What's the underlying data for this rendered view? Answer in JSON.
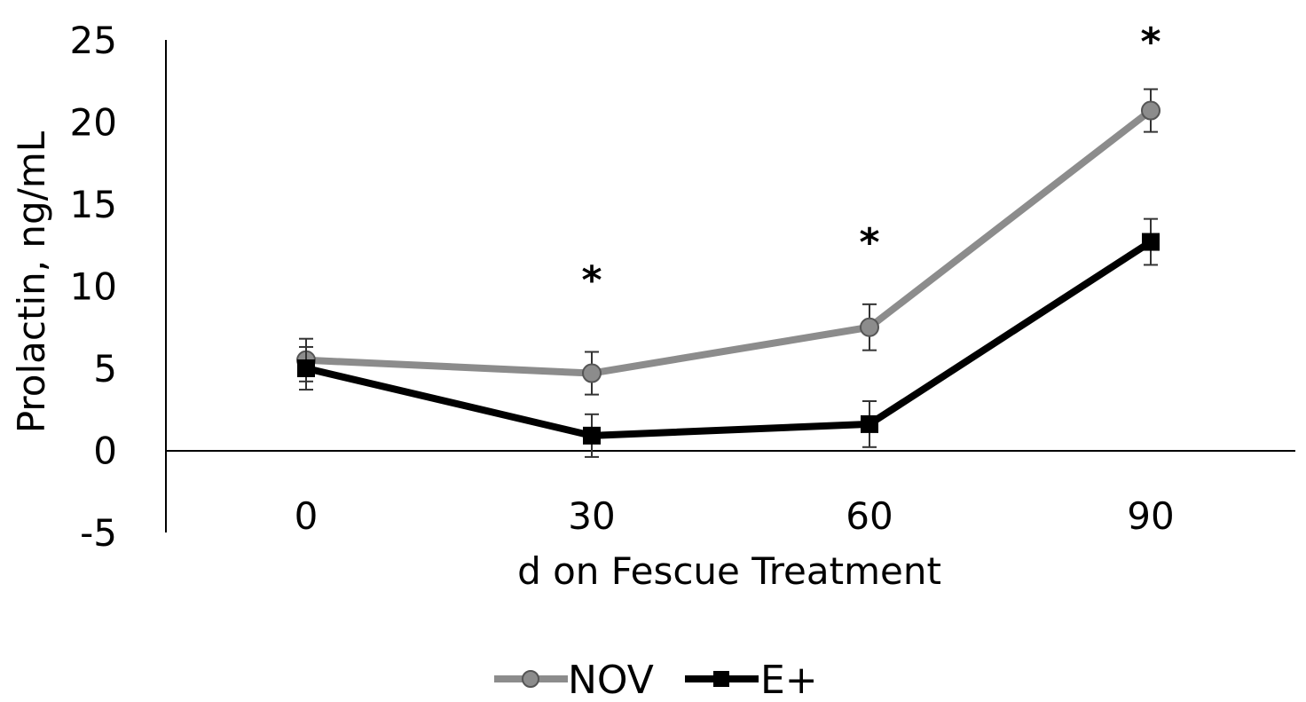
{
  "chart_data": {
    "type": "line",
    "title": "",
    "xlabel": "d on Fescue Treatment",
    "ylabel": "Prolactin, ng/mL",
    "categories": [
      "0",
      "30",
      "60",
      "90"
    ],
    "ylim": [
      -5,
      25
    ],
    "yticks": [
      25,
      20,
      15,
      10,
      5,
      0,
      -5
    ],
    "ytick_labels": [
      "25",
      "20",
      "15",
      "10",
      "5",
      "0",
      "-5"
    ],
    "grid": false,
    "legend_position": "bottom",
    "series": [
      {
        "name": "NOV",
        "values": [
          5.5,
          4.7,
          7.5,
          20.7
        ],
        "errors": [
          1.3,
          1.3,
          1.4,
          1.3
        ],
        "color": "#8c8c8c",
        "marker": "circle",
        "marker_fill": "#8c8c8c"
      },
      {
        "name": "E+",
        "values": [
          5.0,
          0.9,
          1.6,
          12.7
        ],
        "errors": [
          1.3,
          1.3,
          1.4,
          1.4
        ],
        "color": "#000000",
        "marker": "square",
        "marker_fill": "#000000"
      }
    ],
    "annotations": [
      {
        "category": "30",
        "text": "*",
        "y": 11.2
      },
      {
        "category": "60",
        "text": "*",
        "y": 13.5
      },
      {
        "category": "90",
        "text": "*",
        "y": 25.7
      }
    ]
  }
}
